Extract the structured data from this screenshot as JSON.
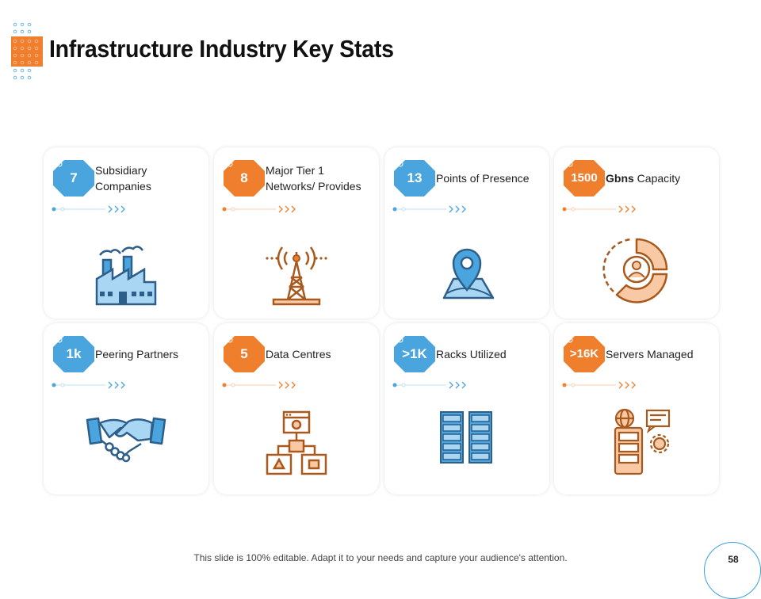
{
  "title": "Infrastructure Industry Key Stats",
  "colors": {
    "blue": "#4aa5df",
    "orange": "#ef7e2d",
    "brown": "#a85a1e",
    "peach": "#f8c9a4"
  },
  "cards": [
    {
      "badge": "7",
      "label": "Subsidiary Companies",
      "color": "blue",
      "icon": "factory-icon"
    },
    {
      "badge": "8",
      "label": "Major Tier 1 Networks/ Provides",
      "color": "orange",
      "icon": "signal-tower-icon"
    },
    {
      "badge": "13",
      "label": "Points of Presence",
      "color": "blue",
      "icon": "map-pin-icon"
    },
    {
      "badge": "1500",
      "label_bold": "Gbns",
      "label": "Capacity",
      "color": "orange",
      "icon": "user-donut-chart-icon"
    },
    {
      "badge": "1k",
      "label": "Peering Partners",
      "color": "blue",
      "icon": "handshake-icon"
    },
    {
      "badge": "5",
      "label": "Data Centres",
      "color": "orange",
      "icon": "network-hierarchy-icon"
    },
    {
      "badge": ">1K",
      "label": "Racks Utilized",
      "color": "blue",
      "icon": "server-racks-icon"
    },
    {
      "badge": ">16K",
      "label": "Servers Managed",
      "color": "orange",
      "icon": "server-globe-gear-icon"
    }
  ],
  "footer": "This slide is 100% editable. Adapt it to your needs and capture your audience's attention.",
  "page_number": "58"
}
